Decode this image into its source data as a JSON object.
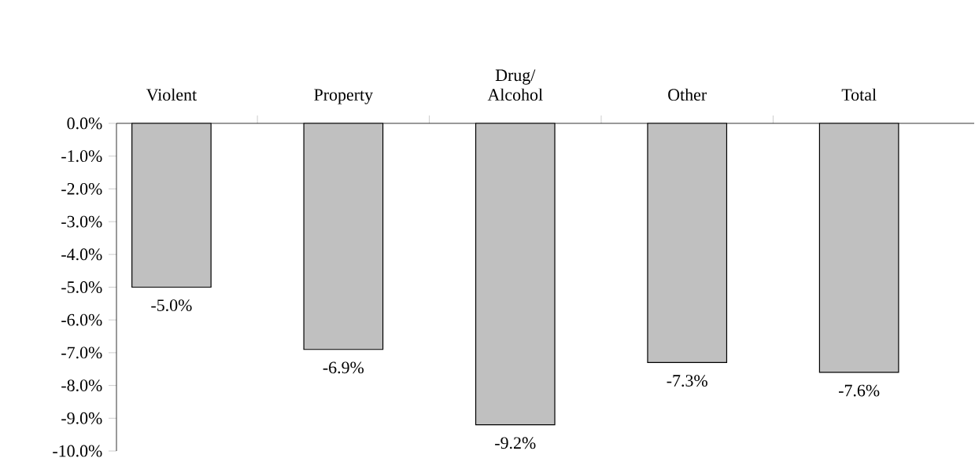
{
  "chart_data": {
    "type": "bar",
    "categories": [
      "Violent",
      "Property",
      "Drug/Alcohol",
      "Other",
      "Total"
    ],
    "values": [
      -5.0,
      -6.9,
      -9.2,
      -7.3,
      -7.6
    ],
    "value_labels": [
      "-5.0%",
      "-6.9%",
      "-9.2%",
      "-7.3%",
      "-7.6%"
    ],
    "color": "#c0c0c0",
    "ylim": [
      -10,
      0
    ],
    "yticks": [
      {
        "value": 0,
        "label": "0.0%"
      },
      {
        "value": -1,
        "label": "-1.0%"
      },
      {
        "value": -2,
        "label": "-2.0%"
      },
      {
        "value": -3,
        "label": "-3.0%"
      },
      {
        "value": -4,
        "label": "-4.0%"
      },
      {
        "value": -5,
        "label": "-5.0%"
      },
      {
        "value": -6,
        "label": "-6.0%"
      },
      {
        "value": -7,
        "label": "-7.0%"
      },
      {
        "value": -8,
        "label": "-8.0%"
      },
      {
        "value": -9,
        "label": "-9.0%"
      },
      {
        "value": -10,
        "label": "-10.0%"
      }
    ]
  }
}
